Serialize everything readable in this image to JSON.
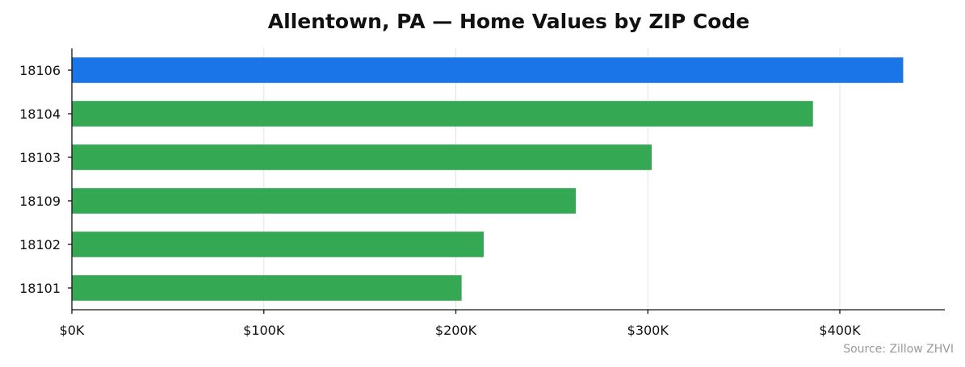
{
  "chart_data": {
    "type": "bar",
    "orientation": "horizontal",
    "title": "Allentown, PA — Home Values by ZIP Code",
    "xlabel": "",
    "ylabel": "",
    "categories": [
      "18106",
      "18104",
      "18103",
      "18109",
      "18102",
      "18101"
    ],
    "values": [
      433000,
      386000,
      302000,
      262500,
      214500,
      203000
    ],
    "xlim": [
      0,
      450000
    ],
    "xticks": [
      0,
      100000,
      200000,
      300000,
      400000
    ],
    "xtick_labels": [
      "$0K",
      "$100K",
      "$200K",
      "$300K",
      "$400K"
    ],
    "highlight_index": 0,
    "colors": {
      "highlight": "#1a75e8",
      "default": "#34a853"
    },
    "grid": {
      "x": true,
      "y": false
    },
    "source": "Source: Zillow ZHVI"
  }
}
